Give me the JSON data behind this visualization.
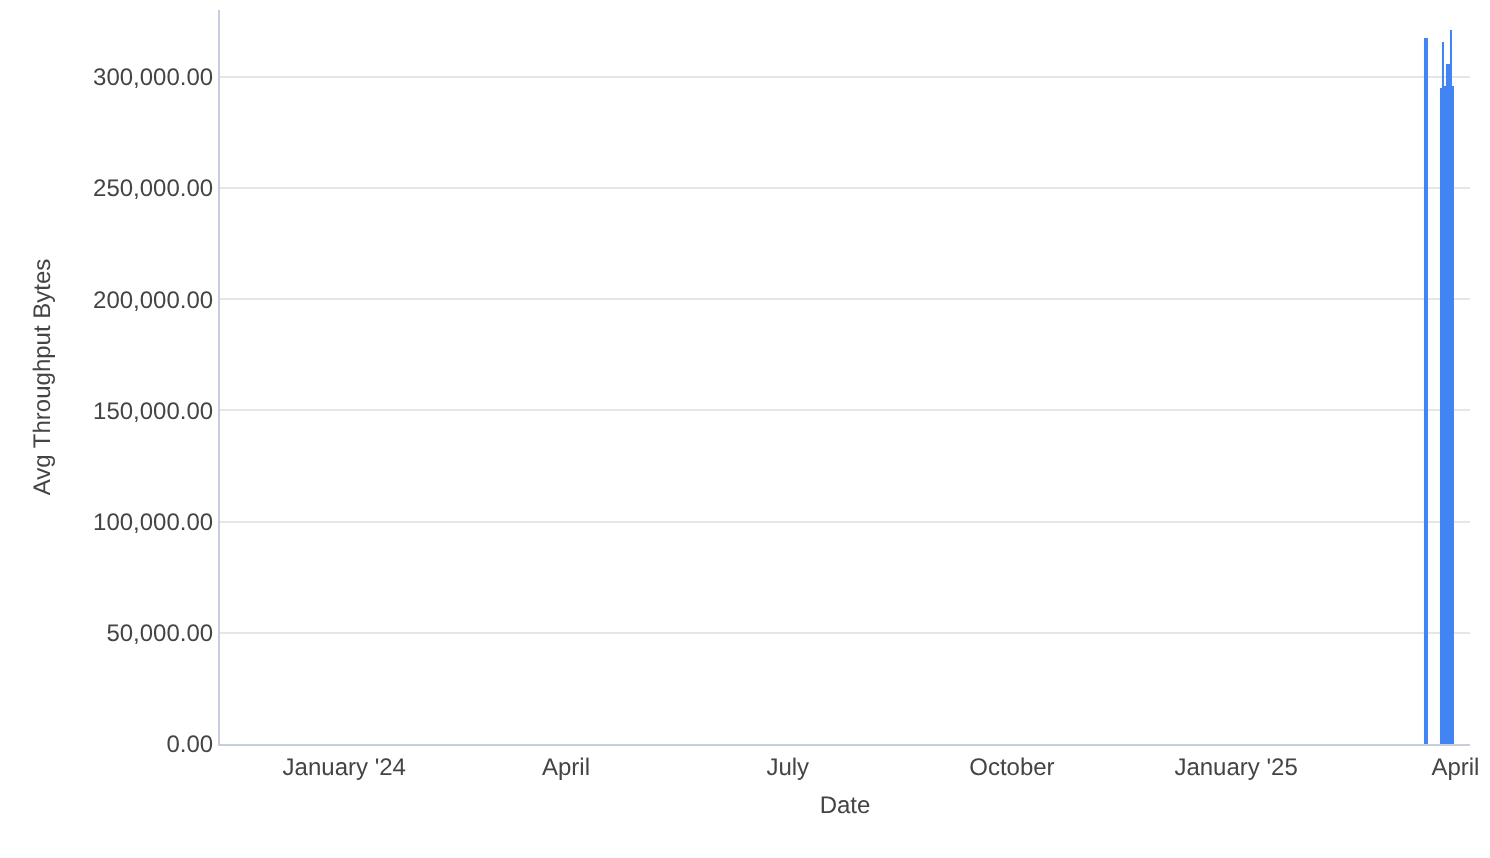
{
  "chart_data": {
    "type": "bar",
    "xlabel": "Date",
    "ylabel": "Avg Throughput Bytes",
    "x": [
      "2025-03-20",
      "2025-03-26",
      "2025-03-27",
      "2025-03-28",
      "2025-03-29",
      "2025-03-30",
      "2025-03-31"
    ],
    "values": [
      317000,
      295000,
      316000,
      296000,
      306000,
      321000,
      296000
    ],
    "color": "#4285f4",
    "xlim": [
      "2023-11-11",
      "2025-04-07"
    ],
    "xticks": [
      {
        "value": "2024-01-01",
        "label": "January '24"
      },
      {
        "value": "2024-04-01",
        "label": "April"
      },
      {
        "value": "2024-07-01",
        "label": "July"
      },
      {
        "value": "2024-10-01",
        "label": "October"
      },
      {
        "value": "2025-01-01",
        "label": "January '25"
      },
      {
        "value": "2025-04-01",
        "label": "April"
      }
    ],
    "ylim": [
      0,
      330000
    ],
    "yticks": [
      {
        "value": 0,
        "label": "0.00"
      },
      {
        "value": 50000,
        "label": "50,000.00"
      },
      {
        "value": 100000,
        "label": "100,000.00"
      },
      {
        "value": 150000,
        "label": "150,000.00"
      },
      {
        "value": 200000,
        "label": "200,000.00"
      },
      {
        "value": 250000,
        "label": "250,000.00"
      },
      {
        "value": 300000,
        "label": "300,000.00"
      }
    ],
    "grid": "y",
    "legend": false
  }
}
